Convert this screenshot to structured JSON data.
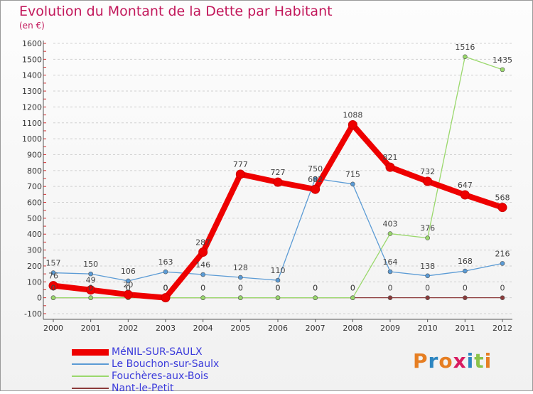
{
  "title": "Evolution du Montant de la Dette par Habitant",
  "subtitle": "(en €)",
  "logo": {
    "text": "Proxiti",
    "letters": [
      "P",
      "r",
      "o",
      "x",
      "i",
      "t",
      "i"
    ],
    "colors": [
      "#e67e22",
      "#2e86c1",
      "#e67e22",
      "#d81b60",
      "#2e86c1",
      "#8bc34a",
      "#e67e22"
    ]
  },
  "chart_data": {
    "type": "line",
    "title": "Evolution du Montant de la Dette par Habitant",
    "subtitle": "(en €)",
    "xlabel": "",
    "ylabel": "",
    "x": [
      "2000",
      "2001",
      "2002",
      "2003",
      "2004",
      "2005",
      "2006",
      "2007",
      "2008",
      "2009",
      "2010",
      "2011",
      "2012"
    ],
    "ylim": [
      -100,
      1600
    ],
    "yticks": [
      -100,
      0,
      100,
      200,
      300,
      400,
      500,
      600,
      700,
      800,
      900,
      1000,
      1100,
      1200,
      1300,
      1400,
      1500,
      1600
    ],
    "grid": "horizontal dashed",
    "legend_position": "bottom-left",
    "series": [
      {
        "name": "MéNIL-SUR-SAULX",
        "color": "#ee0000",
        "width": 8,
        "values": [
          76,
          49,
          20,
          0,
          287,
          777,
          727,
          682,
          1088,
          821,
          732,
          647,
          568
        ]
      },
      {
        "name": "Le Bouchon-sur-Saulx",
        "color": "#5b9bd5",
        "width": 1.3,
        "values": [
          157,
          150,
          106,
          163,
          146,
          128,
          110,
          750,
          715,
          164,
          138,
          168,
          216
        ]
      },
      {
        "name": "Fouchères-aux-Bois",
        "color": "#9ad86c",
        "width": 1.3,
        "values": [
          0,
          0,
          0,
          0,
          0,
          0,
          0,
          0,
          0,
          403,
          376,
          1516,
          1435
        ]
      },
      {
        "name": "Nant-le-Petit",
        "color": "#8b3a3a",
        "width": 1.3,
        "values": [
          0,
          0,
          0,
          0,
          0,
          0,
          0,
          0,
          0,
          0,
          0,
          0,
          0
        ]
      }
    ]
  }
}
